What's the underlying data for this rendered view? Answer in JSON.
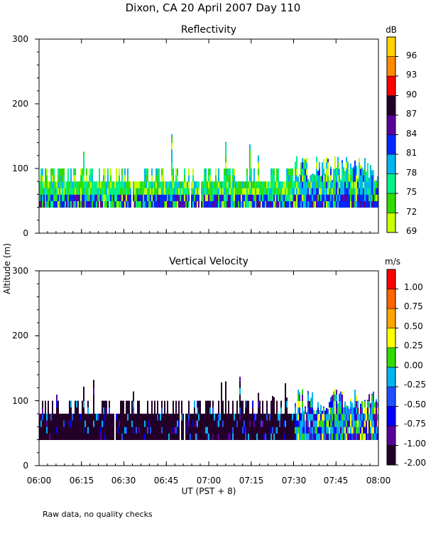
{
  "title": "Dixon, CA 20 April 2007  Day 110",
  "ylabel": "Altitude (m)",
  "xlabel": "UT   (PST + 8)",
  "footnote": "Raw data, no quality checks",
  "x_ticks": [
    "06:00",
    "06:15",
    "06:30",
    "06:45",
    "07:00",
    "07:15",
    "07:30",
    "07:45",
    "08:00"
  ],
  "chart_data": [
    {
      "type": "heatmap",
      "title": "Reflectivity",
      "colorbar_unit": "dB",
      "xlim": [
        "06:00",
        "08:00"
      ],
      "ylim": [
        0,
        300
      ],
      "y_ticks": [
        "0",
        "100",
        "200",
        "300"
      ],
      "colorbar_ticks": [
        "69",
        "72",
        "75",
        "78",
        "81",
        "84",
        "87",
        "90",
        "93",
        "96"
      ],
      "colorbar_colors": [
        "#c8ff00",
        "#32dc00",
        "#00f08c",
        "#00b4f0",
        "#0028ff",
        "#5a009a",
        "#230028",
        "#ff0000",
        "#ff8c00",
        "#ffd200"
      ],
      "data_description": {
        "echo_base_m": 40,
        "echo_top_typical_m": [
          80,
          100
        ],
        "echo_top_max_m": 160,
        "late_period_top_m": 120,
        "late_period_start": "07:30",
        "dominant_range_dB": [
          72,
          81
        ]
      }
    },
    {
      "type": "heatmap",
      "title": "Vertical Velocity",
      "colorbar_unit": "m/s",
      "xlim": [
        "06:00",
        "08:00"
      ],
      "ylim": [
        0,
        300
      ],
      "y_ticks": [
        "0",
        "100",
        "200",
        "300"
      ],
      "colorbar_ticks": [
        "-2.00",
        "-1.00",
        "-0.75",
        "-0.50",
        "-0.25",
        "0.00",
        "0.25",
        "0.50",
        "0.75",
        "1.00"
      ],
      "colorbar_colors": [
        "#230028",
        "#5a009a",
        "#0000ff",
        "#1e50ff",
        "#00b4f0",
        "#32dc00",
        "#ffff00",
        "#ffa500",
        "#ff6400",
        "#ff0000"
      ],
      "data_description": {
        "echo_base_m": 40,
        "echo_top_typical_m": [
          80,
          100
        ],
        "echo_top_max_m": 160,
        "late_period_top_m": 120,
        "late_period_start": "07:30",
        "dominant_range_m_s": [
          -2.0,
          -1.0
        ]
      }
    }
  ]
}
